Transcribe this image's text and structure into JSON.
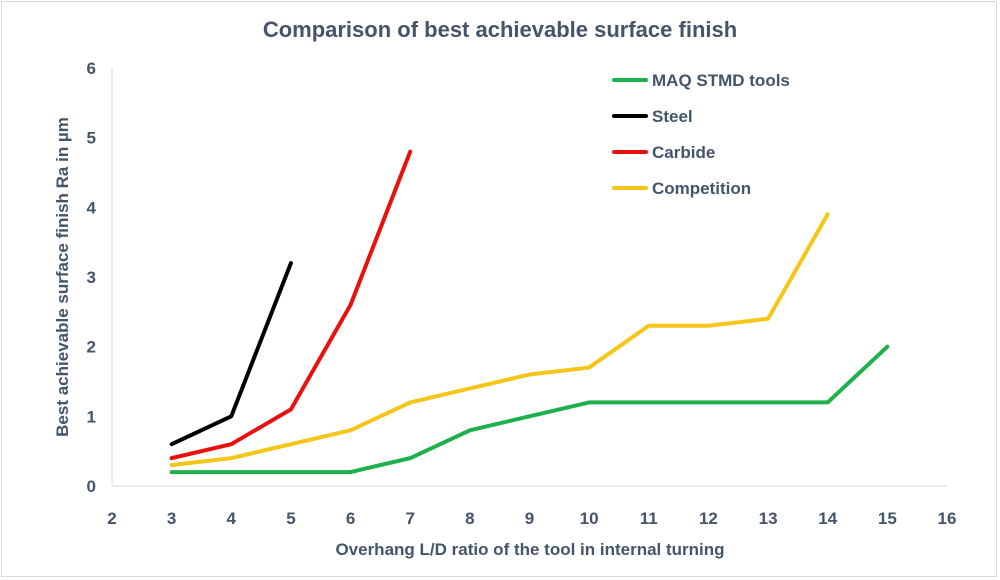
{
  "chart_data": {
    "type": "line",
    "title": "Comparison of best achievable surface finish",
    "xlabel": "Overhang L/D ratio of the tool in internal turning",
    "ylabel": "Best achievable surface finish Ra in µm",
    "xlim": [
      2,
      16
    ],
    "ylim": [
      0,
      6
    ],
    "xticks": [
      2,
      3,
      4,
      5,
      6,
      7,
      8,
      9,
      10,
      11,
      12,
      13,
      14,
      15,
      16
    ],
    "yticks": [
      0,
      1,
      2,
      3,
      4,
      5,
      6
    ],
    "grid": false,
    "legend_position": "top-right",
    "series": [
      {
        "name": "MAQ STMD tools",
        "color": "#1db04b",
        "x": [
          3,
          4,
          5,
          6,
          7,
          8,
          9,
          10,
          11,
          12,
          13,
          14,
          15
        ],
        "y": [
          0.2,
          0.2,
          0.2,
          0.2,
          0.4,
          0.8,
          1.0,
          1.2,
          1.2,
          1.2,
          1.2,
          1.2,
          2.0
        ]
      },
      {
        "name": "Steel",
        "color": "#000000",
        "x": [
          3,
          4,
          5
        ],
        "y": [
          0.6,
          1.0,
          3.2
        ]
      },
      {
        "name": "Carbide",
        "color": "#e8110f",
        "x": [
          3,
          4,
          5,
          6,
          7
        ],
        "y": [
          0.4,
          0.6,
          1.1,
          2.6,
          4.8
        ]
      },
      {
        "name": "Competition",
        "color": "#f5c518",
        "x": [
          3,
          4,
          5,
          6,
          7,
          8,
          9,
          10,
          11,
          12,
          13,
          14
        ],
        "y": [
          0.3,
          0.4,
          0.6,
          0.8,
          1.2,
          1.4,
          1.6,
          1.7,
          2.3,
          2.3,
          2.4,
          3.9
        ]
      }
    ]
  }
}
